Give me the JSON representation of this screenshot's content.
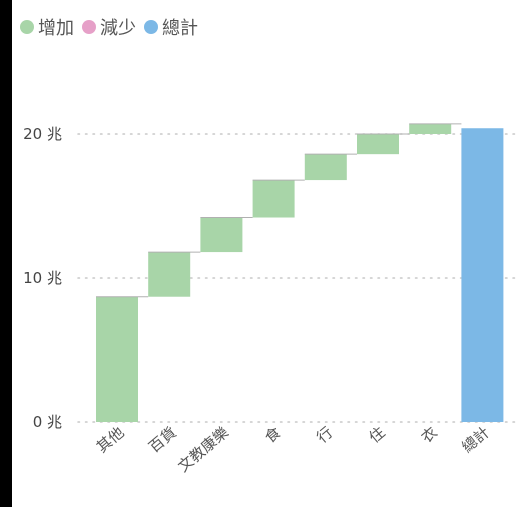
{
  "legend": {
    "items": [
      {
        "label": "增加",
        "color": "#a8d5a8"
      },
      {
        "label": "減少",
        "color": "#e6a0c8"
      },
      {
        "label": "總計",
        "color": "#7cb8e6"
      }
    ]
  },
  "chart_data": {
    "type": "waterfall",
    "categories": [
      "其他",
      "百貨",
      "文教康樂",
      "食",
      "行",
      "住",
      "衣",
      "總計"
    ],
    "increments": [
      8.7,
      3.1,
      2.4,
      2.6,
      1.8,
      1.4,
      0.7
    ],
    "total": 20.4,
    "y_ticks": [
      {
        "value": 0,
        "label": "0 兆"
      },
      {
        "value": 10,
        "label": "10 兆"
      },
      {
        "value": 20,
        "label": "20 兆"
      }
    ],
    "ylim": [
      0,
      20.4
    ],
    "grid": true,
    "legend_position": "top-left",
    "colors": {
      "increase": "#a8d5a8",
      "decrease": "#e6a0c8",
      "total": "#7cb8e6",
      "connector": "#b0b0b0",
      "grid": "#c8c8c8"
    }
  }
}
